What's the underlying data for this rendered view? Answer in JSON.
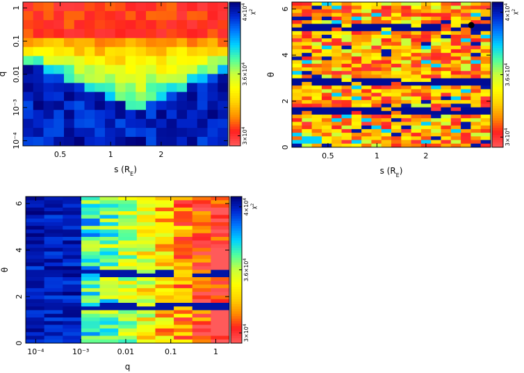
{
  "chart_data": [
    {
      "type": "heatmap",
      "id": "q-vs-s",
      "xlabel": "s (R",
      "xlabel_sub": "E",
      "xlabel_close": ")",
      "ylabel": "q",
      "x_scale": "log",
      "y_scale": "log",
      "xlim": [
        0.3,
        5.0
      ],
      "ylim": [
        7e-05,
        1.5
      ],
      "x_ticks": [
        {
          "v": 0.5,
          "label": "0.5"
        },
        {
          "v": 1,
          "label": "1"
        },
        {
          "v": 2,
          "label": "2"
        }
      ],
      "y_ticks": [
        {
          "v": 1,
          "label": "1"
        },
        {
          "v": 0.1,
          "label": "0.1"
        },
        {
          "v": 0.01,
          "label": "0.01"
        },
        {
          "v": 0.001,
          "label": "10⁻³"
        },
        {
          "v": 0.0001,
          "label": "10⁻⁴"
        }
      ],
      "cols": 20,
      "rows": 16,
      "pattern": "v-shape",
      "marker": null
    },
    {
      "type": "heatmap",
      "id": "theta-vs-s",
      "xlabel": "s (R",
      "xlabel_sub": "E",
      "xlabel_close": ")",
      "ylabel": "θ",
      "x_scale": "log",
      "y_scale": "linear",
      "xlim": [
        0.3,
        5.0
      ],
      "ylim": [
        0,
        6.3
      ],
      "x_ticks": [
        {
          "v": 0.5,
          "label": "0.5"
        },
        {
          "v": 1,
          "label": "1"
        },
        {
          "v": 2,
          "label": "2"
        }
      ],
      "y_ticks": [
        {
          "v": 0,
          "label": "0"
        },
        {
          "v": 2,
          "label": "2"
        },
        {
          "v": 4,
          "label": "4"
        },
        {
          "v": 6,
          "label": "6"
        }
      ],
      "cols": 20,
      "rows": 40,
      "pattern": "theta-bands",
      "marker": {
        "x": 3.8,
        "y": 5.3
      }
    },
    {
      "type": "heatmap",
      "id": "theta-vs-q",
      "xlabel": "q",
      "ylabel": "θ",
      "x_scale": "log",
      "y_scale": "linear",
      "xlim": [
        6e-05,
        2.0
      ],
      "ylim": [
        0,
        6.3
      ],
      "x_ticks": [
        {
          "v": 0.0001,
          "label": "10⁻⁴"
        },
        {
          "v": 0.001,
          "label": "10⁻³"
        },
        {
          "v": 0.01,
          "label": "0.01"
        },
        {
          "v": 0.1,
          "label": "0.1"
        },
        {
          "v": 1,
          "label": "1"
        }
      ],
      "y_ticks": [
        {
          "v": 0,
          "label": "0"
        },
        {
          "v": 2,
          "label": "2"
        },
        {
          "v": 4,
          "label": "4"
        },
        {
          "v": 6,
          "label": "6"
        }
      ],
      "cols": 11,
      "rows": 40,
      "pattern": "q-gradient",
      "marker": null
    }
  ],
  "colorbar": {
    "label": "χ",
    "label_sup": "2",
    "ticks": [
      {
        "label": "4×10",
        "sup": "4",
        "level": 0.93
      },
      {
        "label": "3.6×10",
        "sup": "4",
        "level": 0.5
      },
      {
        "label": "3×10",
        "sup": "4",
        "level": 0.07
      }
    ],
    "colors": [
      "#ff5a5a",
      "#ff2020",
      "#ff8c00",
      "#ffd200",
      "#ffff00",
      "#c8ff3c",
      "#50ffa0",
      "#00d2ff",
      "#0078ff",
      "#0028d2",
      "#00007a"
    ]
  }
}
